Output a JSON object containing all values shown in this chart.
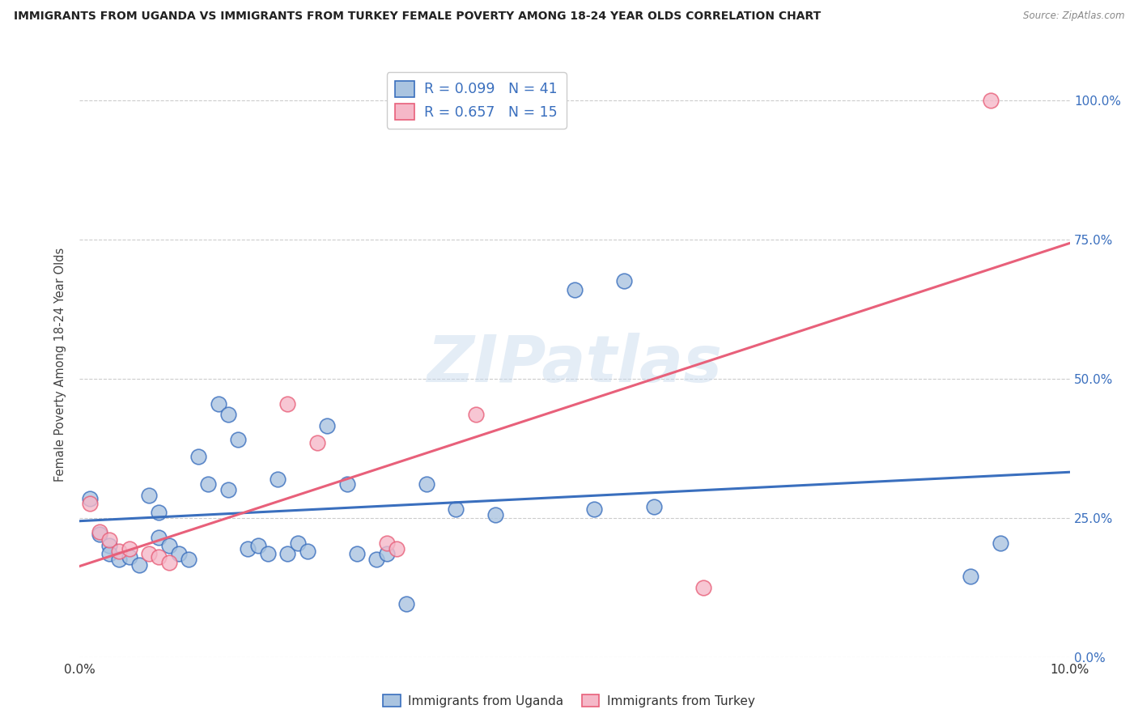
{
  "title": "IMMIGRANTS FROM UGANDA VS IMMIGRANTS FROM TURKEY FEMALE POVERTY AMONG 18-24 YEAR OLDS CORRELATION CHART",
  "source": "Source: ZipAtlas.com",
  "ylabel": "Female Poverty Among 18-24 Year Olds",
  "watermark": "ZIPatlas",
  "uganda_R": 0.099,
  "uganda_N": 41,
  "turkey_R": 0.657,
  "turkey_N": 15,
  "xlim": [
    0.0,
    0.1
  ],
  "ylim": [
    0.0,
    1.05
  ],
  "yticks": [
    0.0,
    0.25,
    0.5,
    0.75,
    1.0
  ],
  "ytick_labels": [
    "0.0%",
    "25.0%",
    "50.0%",
    "75.0%",
    "100.0%"
  ],
  "uganda_color": "#aac4e0",
  "turkey_color": "#f5b8c8",
  "uganda_line_color": "#3a6fbe",
  "turkey_line_color": "#e8607a",
  "legend_label_uganda": "Immigrants from Uganda",
  "legend_label_turkey": "Immigrants from Turkey",
  "uganda_x": [
    0.001,
    0.002,
    0.003,
    0.003,
    0.004,
    0.005,
    0.006,
    0.007,
    0.008,
    0.008,
    0.009,
    0.01,
    0.011,
    0.012,
    0.013,
    0.014,
    0.015,
    0.015,
    0.016,
    0.017,
    0.018,
    0.019,
    0.02,
    0.021,
    0.022,
    0.023,
    0.025,
    0.027,
    0.028,
    0.03,
    0.031,
    0.033,
    0.035,
    0.038,
    0.042,
    0.05,
    0.052,
    0.055,
    0.058,
    0.09,
    0.093
  ],
  "uganda_y": [
    0.285,
    0.22,
    0.2,
    0.185,
    0.175,
    0.18,
    0.165,
    0.29,
    0.26,
    0.215,
    0.2,
    0.185,
    0.175,
    0.36,
    0.31,
    0.455,
    0.3,
    0.435,
    0.39,
    0.195,
    0.2,
    0.185,
    0.32,
    0.185,
    0.205,
    0.19,
    0.415,
    0.31,
    0.185,
    0.175,
    0.185,
    0.095,
    0.31,
    0.265,
    0.255,
    0.66,
    0.265,
    0.675,
    0.27,
    0.145,
    0.205
  ],
  "turkey_x": [
    0.001,
    0.002,
    0.003,
    0.004,
    0.005,
    0.007,
    0.008,
    0.009,
    0.021,
    0.024,
    0.031,
    0.032,
    0.04,
    0.063,
    0.092
  ],
  "turkey_y": [
    0.275,
    0.225,
    0.21,
    0.19,
    0.195,
    0.185,
    0.18,
    0.17,
    0.455,
    0.385,
    0.205,
    0.195,
    0.435,
    0.125,
    1.0
  ]
}
